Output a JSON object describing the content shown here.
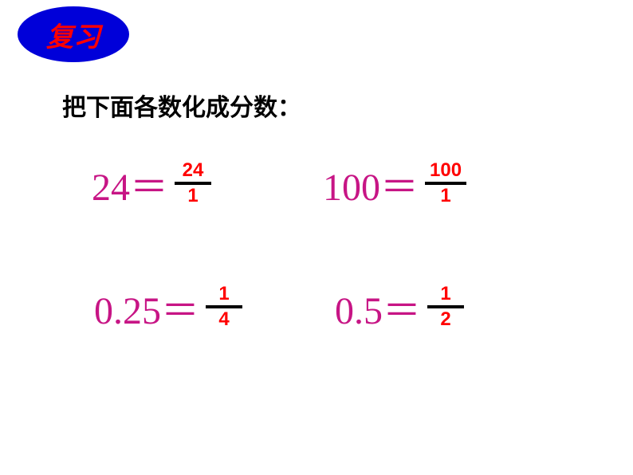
{
  "badge": {
    "label": "复习",
    "bg_color": "#0000d9",
    "text_color": "#ff0000"
  },
  "instruction": "把下面各数化成分数：",
  "equations": {
    "eq1": {
      "lhs": "24＝",
      "numerator": "24",
      "denominator": "1"
    },
    "eq2": {
      "lhs": "100＝",
      "numerator": "100",
      "denominator": "1"
    },
    "eq3": {
      "lhs": "0.25＝",
      "numerator": "1",
      "denominator": "4"
    },
    "eq4": {
      "lhs": "0.5＝",
      "numerator": "1",
      "denominator": "2"
    }
  },
  "colors": {
    "lhs_color": "#c71585",
    "fraction_color": "#ff0000",
    "bar_color": "#000000",
    "instruction_color": "#000000",
    "background": "#ffffff"
  },
  "fonts": {
    "lhs_size": 48,
    "fraction_size": 24,
    "instruction_size": 30,
    "badge_size": 34
  }
}
